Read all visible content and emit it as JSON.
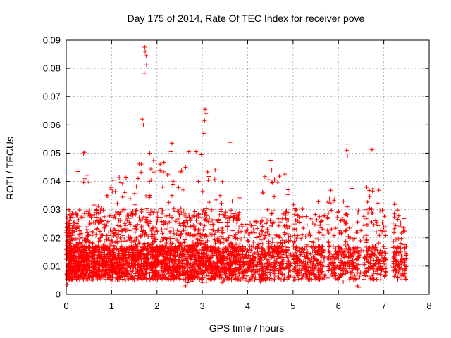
{
  "chart_data": {
    "type": "scatter",
    "title": "Day 175 of 2014, Rate Of TEC Index for receiver pove",
    "xlabel": "GPS time / hours",
    "ylabel": "ROTI / TECUs",
    "xlim": [
      0,
      8
    ],
    "ylim": [
      0,
      0.09
    ],
    "xticks": [
      "0",
      "1",
      "2",
      "3",
      "4",
      "5",
      "6",
      "7",
      "8"
    ],
    "yticks": [
      "0",
      "0.01",
      "0.02",
      "0.03",
      "0.04",
      "0.05",
      "0.06",
      "0.07",
      "0.08",
      "0.09"
    ],
    "grid": true,
    "marker": "+",
    "series_color": "#ff0000",
    "highlights": [
      {
        "x": 1.73,
        "y": 0.0875
      },
      {
        "x": 1.74,
        "y": 0.086
      },
      {
        "x": 1.76,
        "y": 0.0845
      },
      {
        "x": 1.72,
        "y": 0.0783
      },
      {
        "x": 1.77,
        "y": 0.0812
      },
      {
        "x": 1.68,
        "y": 0.062
      },
      {
        "x": 1.7,
        "y": 0.06
      },
      {
        "x": 3.06,
        "y": 0.0655
      },
      {
        "x": 3.08,
        "y": 0.064
      },
      {
        "x": 3.05,
        "y": 0.0615
      },
      {
        "x": 3.03,
        "y": 0.057
      },
      {
        "x": 6.19,
        "y": 0.0532
      },
      {
        "x": 6.18,
        "y": 0.051
      },
      {
        "x": 6.2,
        "y": 0.049
      },
      {
        "x": 6.74,
        "y": 0.0512
      },
      {
        "x": 2.33,
        "y": 0.0535
      },
      {
        "x": 2.31,
        "y": 0.0505
      },
      {
        "x": 0.4,
        "y": 0.0503
      },
      {
        "x": 0.38,
        "y": 0.0498
      },
      {
        "x": 3.61,
        "y": 0.0538
      },
      {
        "x": 2.7,
        "y": 0.0505
      },
      {
        "x": 2.86,
        "y": 0.0505
      },
      {
        "x": 2.98,
        "y": 0.0495
      },
      {
        "x": 4.51,
        "y": 0.0475
      },
      {
        "x": 4.53,
        "y": 0.044
      },
      {
        "x": 1.84,
        "y": 0.05
      },
      {
        "x": 6.45,
        "y": 0.0025
      },
      {
        "x": 6.42,
        "y": 0.003
      },
      {
        "x": 2.63,
        "y": 0.003
      },
      {
        "x": 0.02,
        "y": 0.0035
      }
    ],
    "segments": [
      {
        "x0": 0.0,
        "x1": 0.15,
        "n": 220,
        "lo": 0.004,
        "hi": 0.03
      },
      {
        "x0": 0.15,
        "x1": 0.5,
        "n": 300,
        "lo": 0.005,
        "hi": 0.045
      },
      {
        "x0": 0.5,
        "x1": 1.0,
        "n": 360,
        "lo": 0.005,
        "hi": 0.038
      },
      {
        "x0": 1.0,
        "x1": 1.5,
        "n": 360,
        "lo": 0.005,
        "hi": 0.042
      },
      {
        "x0": 1.5,
        "x1": 2.0,
        "n": 380,
        "lo": 0.005,
        "hi": 0.048
      },
      {
        "x0": 2.0,
        "x1": 2.5,
        "n": 360,
        "lo": 0.005,
        "hi": 0.047
      },
      {
        "x0": 2.5,
        "x1": 3.0,
        "n": 360,
        "lo": 0.004,
        "hi": 0.048
      },
      {
        "x0": 3.0,
        "x1": 3.5,
        "n": 340,
        "lo": 0.004,
        "hi": 0.046
      },
      {
        "x0": 3.5,
        "x1": 3.85,
        "n": 240,
        "lo": 0.005,
        "hi": 0.036
      },
      {
        "x0": 3.85,
        "x1": 4.3,
        "n": 200,
        "lo": 0.004,
        "hi": 0.026
      },
      {
        "x0": 4.3,
        "x1": 4.95,
        "n": 320,
        "lo": 0.004,
        "hi": 0.043
      },
      {
        "x0": 5.0,
        "x1": 5.7,
        "n": 300,
        "lo": 0.005,
        "hi": 0.033
      },
      {
        "x0": 5.75,
        "x1": 6.5,
        "n": 280,
        "lo": 0.004,
        "hi": 0.04
      },
      {
        "x0": 6.55,
        "x1": 7.05,
        "n": 180,
        "lo": 0.005,
        "hi": 0.04
      },
      {
        "x0": 7.2,
        "x1": 7.5,
        "n": 120,
        "lo": 0.005,
        "hi": 0.033
      }
    ]
  }
}
